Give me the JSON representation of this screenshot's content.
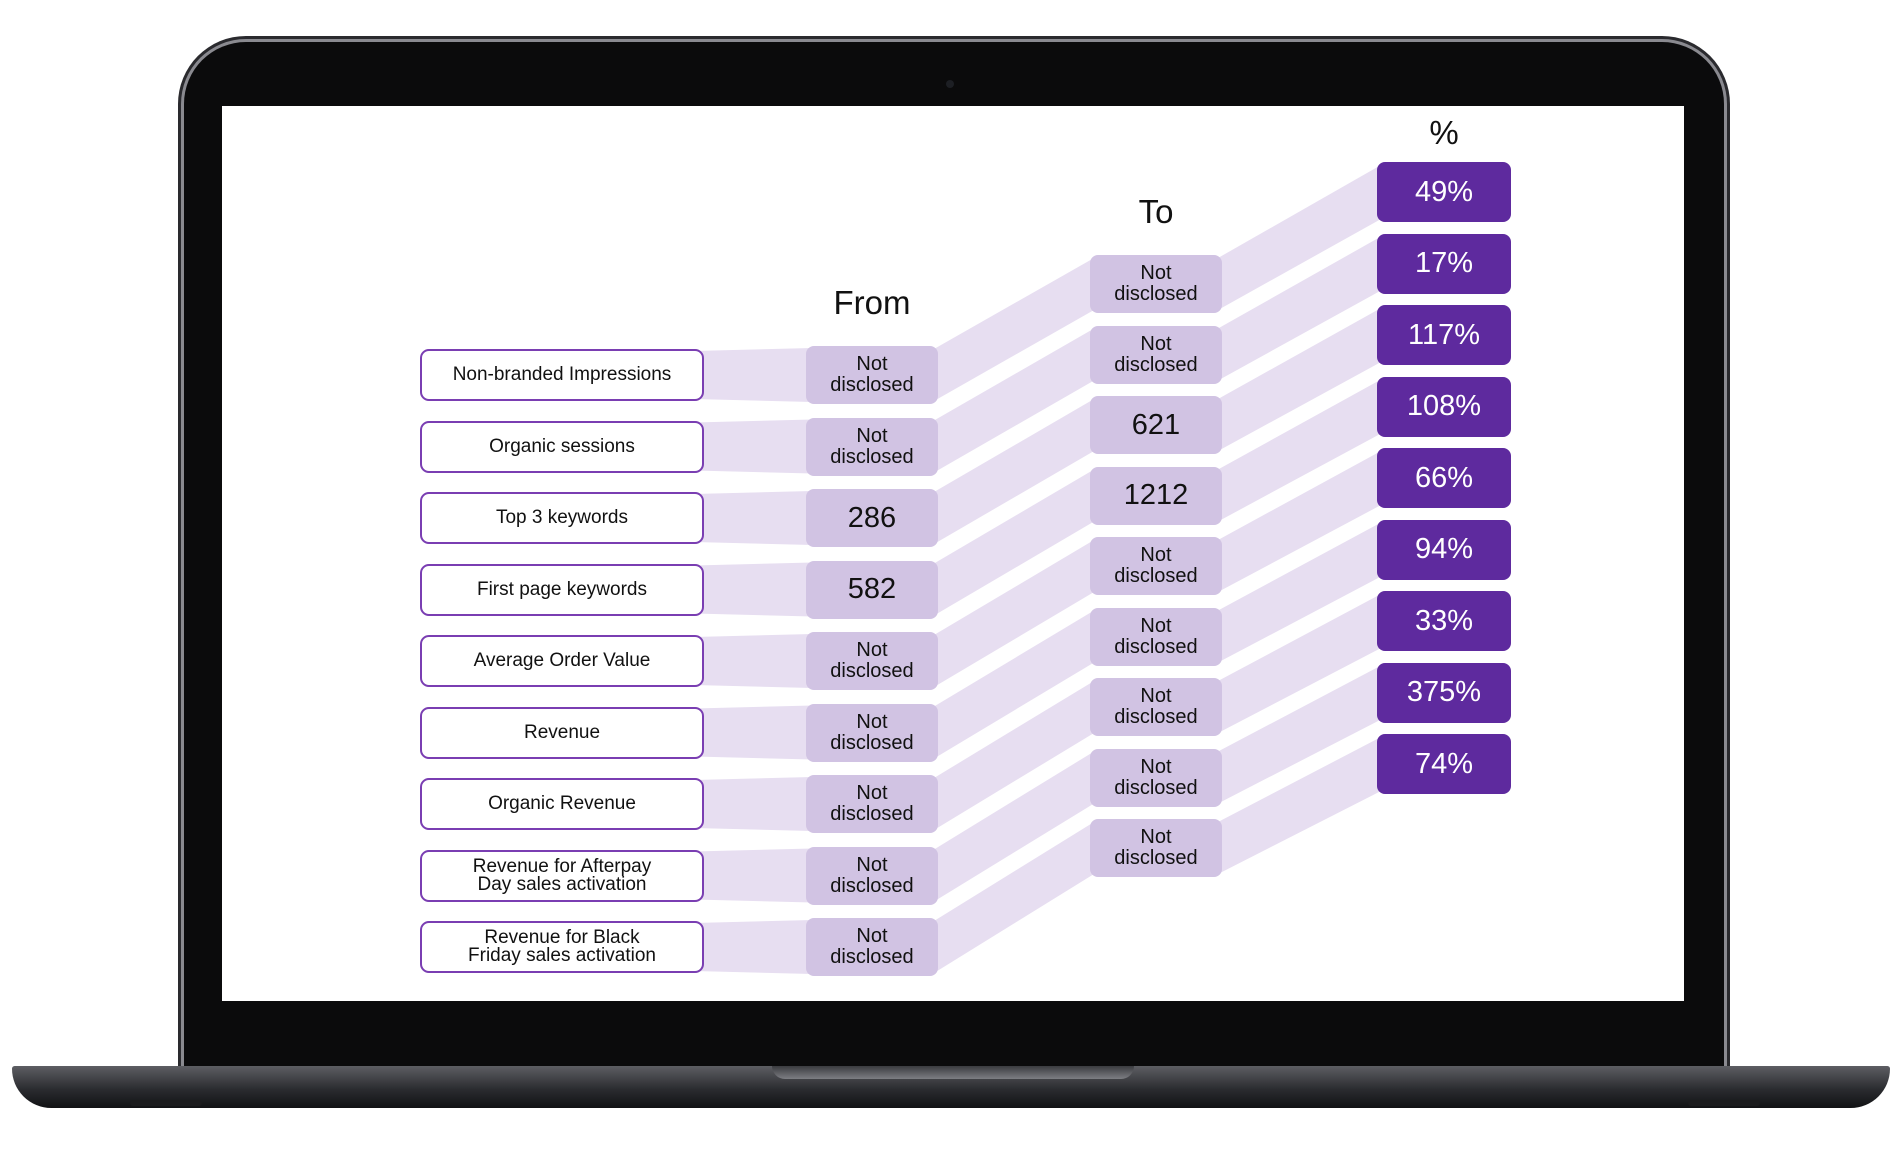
{
  "headers": {
    "from": "From",
    "to": "To",
    "percent": "%"
  },
  "rows": [
    {
      "label": "Non-branded Impressions",
      "from": "Not\ndisclosed",
      "to": "Not\ndisclosed",
      "percent": "49%"
    },
    {
      "label": "Organic sessions",
      "from": "Not\ndisclosed",
      "to": "Not\ndisclosed",
      "percent": "17%"
    },
    {
      "label": "Top 3 keywords",
      "from": "286",
      "to": "621",
      "percent": "117%"
    },
    {
      "label": "First page keywords",
      "from": "582",
      "to": "1212",
      "percent": "108%"
    },
    {
      "label": "Average Order Value",
      "from": "Not\ndisclosed",
      "to": "Not\ndisclosed",
      "percent": "66%"
    },
    {
      "label": "Revenue",
      "from": "Not\ndisclosed",
      "to": "Not\ndisclosed",
      "percent": "94%"
    },
    {
      "label": "Organic Revenue",
      "from": "Not\ndisclosed",
      "to": "Not\ndisclosed",
      "percent": "33%"
    },
    {
      "label": "Revenue for Afterpay\nDay sales activation",
      "from": "Not\ndisclosed",
      "to": "Not\ndisclosed",
      "percent": "375%"
    },
    {
      "label": "Revenue for Black\nFriday sales activation",
      "from": "Not\ndisclosed",
      "to": "Not\ndisclosed",
      "percent": "74%"
    }
  ],
  "colors": {
    "label_border": "#7a3eb2",
    "value_fill": "#d1c3e3",
    "band_fill": "#e7def1",
    "percent_fill": "#5e2a9e"
  }
}
